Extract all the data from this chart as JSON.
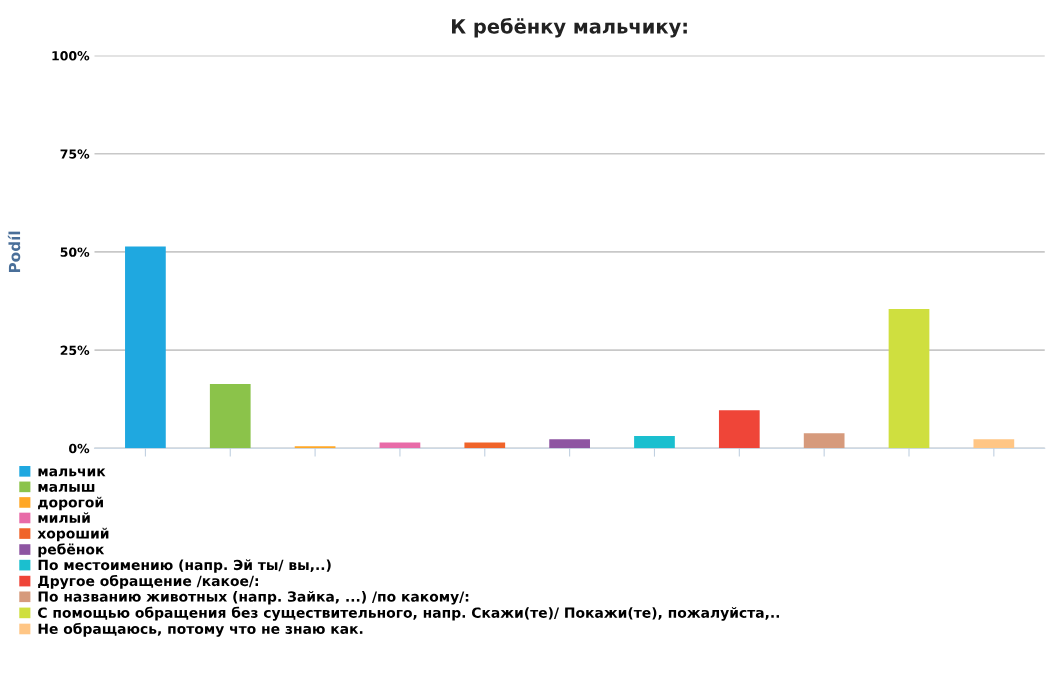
{
  "chart_data": {
    "type": "bar",
    "title": "К ребёнку мальчику:",
    "ylabel": "Podíl",
    "categories": [
      null,
      null,
      null,
      null,
      null,
      null,
      null,
      null,
      null,
      null,
      null
    ],
    "series": [
      {
        "name": "мальчик",
        "color": "#1fa8e0",
        "values": [
          51.4,
          null,
          null,
          null,
          null,
          null,
          null,
          null,
          null,
          null,
          null
        ]
      },
      {
        "name": "малыш",
        "color": "#8bc34a",
        "values": [
          null,
          16.4,
          null,
          null,
          null,
          null,
          null,
          null,
          null,
          null,
          null
        ]
      },
      {
        "name": "дорогой",
        "color": "#ffa726",
        "values": [
          null,
          null,
          0.5,
          null,
          null,
          null,
          null,
          null,
          null,
          null,
          null
        ]
      },
      {
        "name": "милый",
        "color": "#e86ba8",
        "values": [
          null,
          null,
          null,
          1.5,
          null,
          null,
          null,
          null,
          null,
          null,
          null
        ]
      },
      {
        "name": "хороший",
        "color": "#f0642a",
        "values": [
          null,
          null,
          null,
          null,
          1.5,
          null,
          null,
          null,
          null,
          null,
          null
        ]
      },
      {
        "name": "ребёнок",
        "color": "#8e55a2",
        "values": [
          null,
          null,
          null,
          null,
          null,
          2.3,
          null,
          null,
          null,
          null,
          null
        ]
      },
      {
        "name": "По местоимению (напр. Эй ты/ вы,..)",
        "color": "#1bbfcf",
        "values": [
          null,
          null,
          null,
          null,
          null,
          null,
          3.1,
          null,
          null,
          null,
          null
        ]
      },
      {
        "name": "Другое обращение /какое/:",
        "color": "#ef4538",
        "values": [
          null,
          null,
          null,
          null,
          null,
          null,
          null,
          9.7,
          null,
          null,
          null
        ]
      },
      {
        "name": "По названию животных (напр. Зайка, ...) /по какому/:",
        "color": "#d69a7c",
        "values": [
          null,
          null,
          null,
          null,
          null,
          null,
          null,
          null,
          3.8,
          null,
          null
        ]
      },
      {
        "name": "С помощью обращения без существительного, напр. Скажи(те)/ Покажи(те), пожалуйста,..",
        "color": "#cfdf3f",
        "values": [
          null,
          null,
          null,
          null,
          null,
          null,
          null,
          null,
          null,
          35.5,
          null
        ]
      },
      {
        "name": "Не обращаюсь, потому что не знаю как.",
        "color": "#ffc685",
        "values": [
          null,
          null,
          null,
          null,
          null,
          null,
          null,
          null,
          null,
          null,
          2.3
        ]
      }
    ],
    "ylim": [
      0,
      100
    ],
    "yticks": [
      {
        "value": 0,
        "label": "0%"
      },
      {
        "value": 25,
        "label": "25%"
      },
      {
        "value": 50,
        "label": "50%"
      },
      {
        "value": 75,
        "label": "75%"
      },
      {
        "value": 100,
        "label": "100%"
      }
    ],
    "grid": "y",
    "legend": "bottom",
    "tick_labels": "y"
  }
}
